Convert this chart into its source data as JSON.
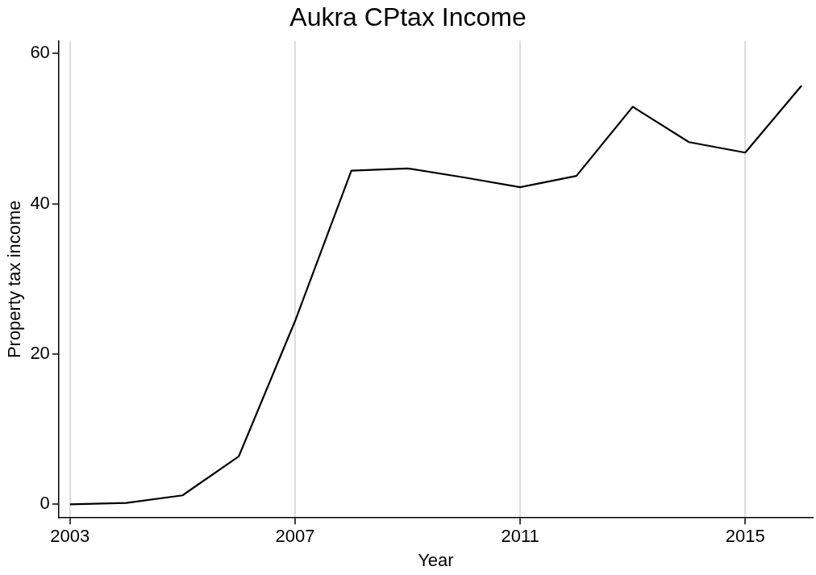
{
  "chart_data": {
    "type": "line",
    "title": "Aukra CPtax Income",
    "xlabel": "Year",
    "ylabel": "Property tax income",
    "x": [
      2003,
      2004,
      2005,
      2006,
      2007,
      2008,
      2009,
      2010,
      2011,
      2012,
      2013,
      2014,
      2015,
      2016
    ],
    "series": [
      {
        "color": "#000000",
        "values": [
          0,
          0.2,
          1.2,
          6.4,
          24.4,
          44.4,
          44.7,
          43.5,
          42.2,
          43.7,
          52.9,
          48.2,
          46.8,
          55.7
        ]
      }
    ],
    "xlim": [
      2002.8,
      2016.2
    ],
    "xticks": [
      2003,
      2007,
      2011,
      2015
    ],
    "ylim": [
      -1.8,
      61.7
    ],
    "yticks": [
      0,
      20,
      40,
      60
    ],
    "grid": "x",
    "legend": false,
    "marker": "none",
    "line_style": "solid"
  }
}
